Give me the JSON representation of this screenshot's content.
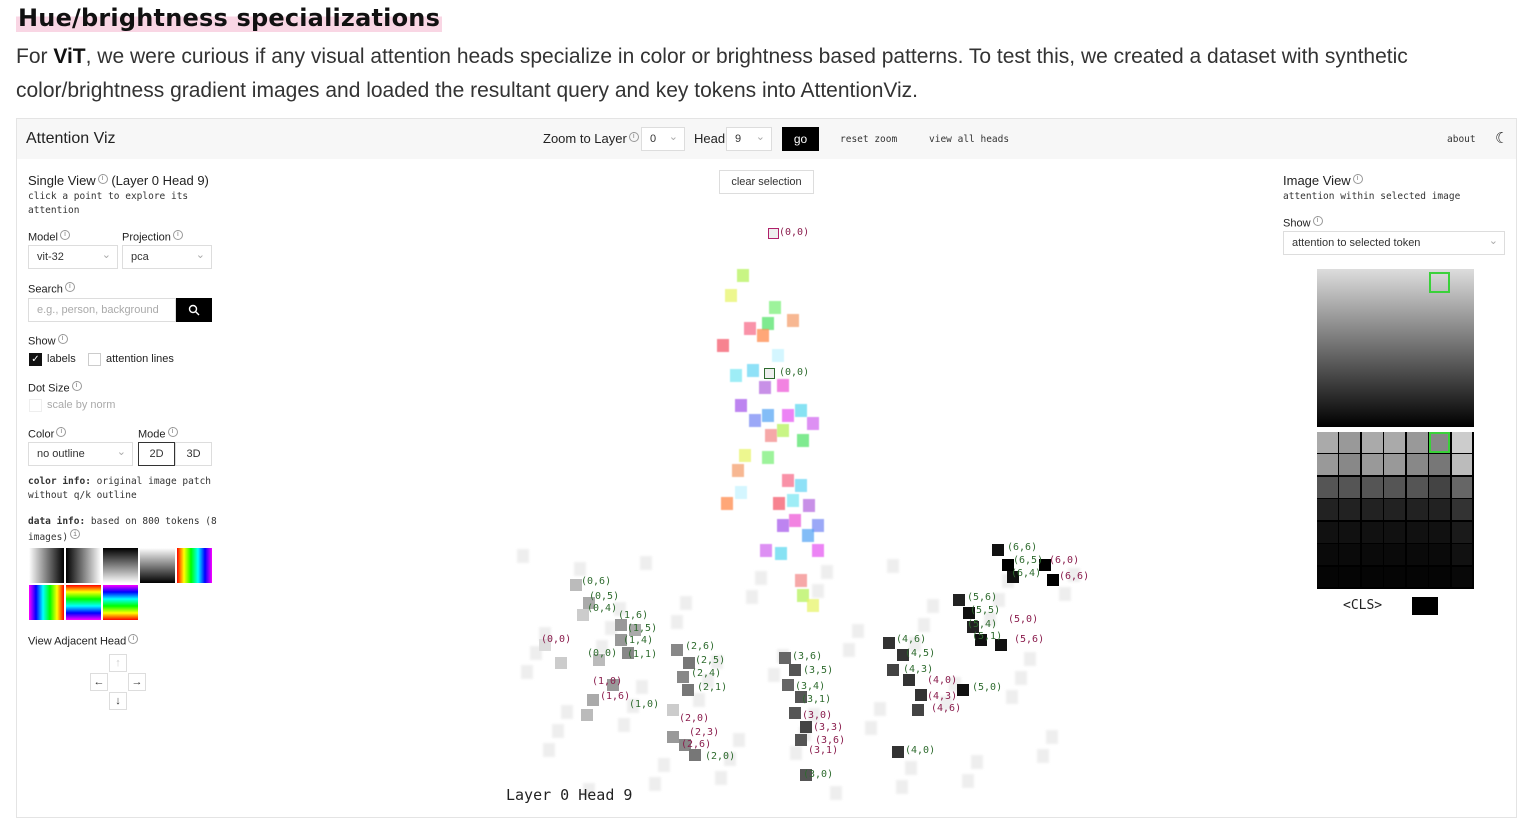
{
  "page": {
    "heading": "Hue/brightness specializations",
    "para_prefix": "For ",
    "para_bold": "ViT",
    "para_rest": ", we were curious if any visual attention heads specialize in color or brightness based patterns. To test this, we created a dataset with synthetic color/brightness gradient images and loaded the resultant query and key tokens into AttentionViz."
  },
  "topbar": {
    "title": "Attention Viz",
    "zoom_label": "Zoom to Layer",
    "zoom_value": "0",
    "head_label": "Head",
    "head_value": "9",
    "go_label": "go",
    "reset_zoom": "reset zoom",
    "view_all_heads": "view all heads",
    "about": "about",
    "theme_icon": "☾"
  },
  "left": {
    "single_view": "Single View",
    "single_view_sub": "(Layer 0 Head 9)",
    "single_view_desc": "click a point to explore its attention",
    "model_label": "Model",
    "model_value": "vit-32",
    "projection_label": "Projection",
    "projection_value": "pca",
    "search_label": "Search",
    "search_placeholder": "e.g., person, background",
    "show_label": "Show",
    "labels_label": "labels",
    "attention_lines_label": "attention lines",
    "dot_size_label": "Dot Size",
    "scale_by_norm": "scale by norm",
    "color_label": "Color",
    "color_value": "no outline",
    "mode_label": "Mode",
    "mode_2d": "2D",
    "mode_3d": "3D",
    "color_info_key": "color info:",
    "color_info_val": " original image patch without q/k outline",
    "data_info_key": "data info:",
    "data_info_val": " based on 800 tokens (8 images)",
    "adjacent_head": "View Adjacent Head"
  },
  "center": {
    "clear_selection": "clear selection",
    "footer": "Layer 0 Head 9",
    "labels": [
      {
        "t": "(0,0)",
        "c": "#8a1d4d"
      },
      {
        "t": "(0,0)",
        "c": "#2e6b2e"
      },
      {
        "t": "(0,6)",
        "c": "#2e6b2e"
      },
      {
        "t": "(0,5)",
        "c": "#2e6b2e"
      },
      {
        "t": "(0,4)",
        "c": "#2e6b2e"
      },
      {
        "t": "(1,6)",
        "c": "#2e6b2e"
      },
      {
        "t": "(1,5)",
        "c": "#2e6b2e"
      },
      {
        "t": "(1,4)",
        "c": "#2e6b2e"
      },
      {
        "t": "(1,1)",
        "c": "#2e6b2e"
      },
      {
        "t": "(0,0)",
        "c": "#8a1d4d"
      },
      {
        "t": "(0,0)",
        "c": "#2e6b2e"
      },
      {
        "t": "(1,0)",
        "c": "#8a1d4d"
      },
      {
        "t": "(1,6)",
        "c": "#8a1d4d"
      },
      {
        "t": "(1,0)",
        "c": "#2e6b2e"
      },
      {
        "t": "(2,6)",
        "c": "#2e6b2e"
      },
      {
        "t": "(2,5)",
        "c": "#2e6b2e"
      },
      {
        "t": "(2,4)",
        "c": "#2e6b2e"
      },
      {
        "t": "(2,1)",
        "c": "#2e6b2e"
      },
      {
        "t": "(2,0)",
        "c": "#8a1d4d"
      },
      {
        "t": "(2,3)",
        "c": "#8a1d4d"
      },
      {
        "t": "(2,6)",
        "c": "#8a1d4d"
      },
      {
        "t": "(2,0)",
        "c": "#2e6b2e"
      },
      {
        "t": "(3,6)",
        "c": "#2e6b2e"
      },
      {
        "t": "(3,5)",
        "c": "#2e6b2e"
      },
      {
        "t": "(3,4)",
        "c": "#2e6b2e"
      },
      {
        "t": "(3,1)",
        "c": "#2e6b2e"
      },
      {
        "t": "(3,0)",
        "c": "#8a1d4d"
      },
      {
        "t": "(3,3)",
        "c": "#8a1d4d"
      },
      {
        "t": "(3,6)",
        "c": "#8a1d4d"
      },
      {
        "t": "(3,1)",
        "c": "#8a1d4d"
      },
      {
        "t": "(3,0)",
        "c": "#2e6b2e"
      },
      {
        "t": "(4,6)",
        "c": "#2e6b2e"
      },
      {
        "t": "(4,5)",
        "c": "#2e6b2e"
      },
      {
        "t": "(4,3)",
        "c": "#2e6b2e"
      },
      {
        "t": "(4,0)",
        "c": "#8a1d4d"
      },
      {
        "t": "(4,3)",
        "c": "#8a1d4d"
      },
      {
        "t": "(4,6)",
        "c": "#8a1d4d"
      },
      {
        "t": "(4,0)",
        "c": "#2e6b2e"
      },
      {
        "t": "(5,6)",
        "c": "#2e6b2e"
      },
      {
        "t": "(5,5)",
        "c": "#2e6b2e"
      },
      {
        "t": "(5,4)",
        "c": "#2e6b2e"
      },
      {
        "t": "(5,1)",
        "c": "#2e6b2e"
      },
      {
        "t": "(5,0)",
        "c": "#8a1d4d"
      },
      {
        "t": "(5,6)",
        "c": "#8a1d4d"
      },
      {
        "t": "(5,0)",
        "c": "#2e6b2e"
      },
      {
        "t": "(6,6)",
        "c": "#2e6b2e"
      },
      {
        "t": "(6,5)",
        "c": "#2e6b2e"
      },
      {
        "t": "(6,4)",
        "c": "#2e6b2e"
      },
      {
        "t": "(6,0)",
        "c": "#8a1d4d"
      },
      {
        "t": "(6,6)",
        "c": "#8a1d4d"
      }
    ]
  },
  "right": {
    "image_view": "Image View",
    "image_view_desc": "attention within selected image",
    "show_label": "Show",
    "show_value": "attention to selected token",
    "cls_label": "<CLS>"
  }
}
